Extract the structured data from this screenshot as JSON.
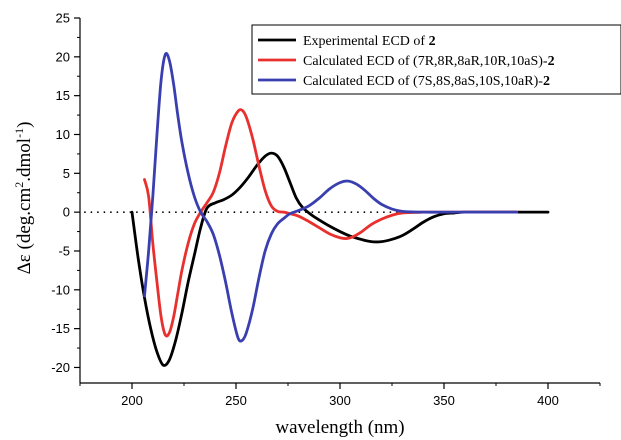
{
  "chart_data": {
    "type": "line",
    "xlabel": "wavelength (nm)",
    "ylabel_prefix": "Δε (deg.cm",
    "ylabel_sup1": "2",
    "ylabel_mid": ".dmol",
    "ylabel_sup2": "-1",
    "ylabel_suffix": ")",
    "xlim": [
      175,
      425
    ],
    "ylim": [
      -22,
      25
    ],
    "xticks": [
      200,
      250,
      300,
      350,
      400
    ],
    "yticks": [
      -20,
      -15,
      -10,
      -5,
      0,
      5,
      10,
      15,
      20,
      25
    ],
    "baseline": {
      "y": 0,
      "style": "dotted",
      "x_range": [
        177,
        388
      ]
    },
    "legend": {
      "placement": "top-right",
      "entries": [
        {
          "prefix": "Experimental ECD of ",
          "config": "",
          "suffix": "2",
          "color": "#000000"
        },
        {
          "prefix": "Calculated ECD of ",
          "config": "(7R,8R,8aR,10R,10aS)-",
          "suffix": "2",
          "color": "#e8312f"
        },
        {
          "prefix": "Calculated ECD of ",
          "config": "(7S,8S,8aS,10S,10aR)-",
          "suffix": "2",
          "color": "#3a3fb0"
        }
      ]
    },
    "series": [
      {
        "name": "Experimental ECD of 2",
        "color": "#000000",
        "points": [
          [
            200,
            0
          ],
          [
            203,
            -6
          ],
          [
            206,
            -11
          ],
          [
            209,
            -15
          ],
          [
            212,
            -18
          ],
          [
            215,
            -19.7
          ],
          [
            218,
            -19
          ],
          [
            221,
            -16.5
          ],
          [
            224,
            -13
          ],
          [
            227,
            -9
          ],
          [
            230,
            -5.5
          ],
          [
            233,
            -2
          ],
          [
            236,
            0.5
          ],
          [
            240,
            1.2
          ],
          [
            244,
            1.6
          ],
          [
            248,
            2.2
          ],
          [
            252,
            3.2
          ],
          [
            256,
            4.5
          ],
          [
            260,
            6
          ],
          [
            264,
            7.2
          ],
          [
            267,
            7.6
          ],
          [
            270,
            7.2
          ],
          [
            273,
            5.8
          ],
          [
            276,
            3.8
          ],
          [
            279,
            1.8
          ],
          [
            282,
            0.6
          ],
          [
            286,
            -0.3
          ],
          [
            290,
            -1
          ],
          [
            295,
            -1.8
          ],
          [
            300,
            -2.5
          ],
          [
            305,
            -3.1
          ],
          [
            310,
            -3.5
          ],
          [
            315,
            -3.8
          ],
          [
            320,
            -3.8
          ],
          [
            325,
            -3.5
          ],
          [
            330,
            -3
          ],
          [
            335,
            -2.2
          ],
          [
            340,
            -1.3
          ],
          [
            345,
            -0.6
          ],
          [
            350,
            -0.2
          ],
          [
            355,
            -0.1
          ],
          [
            360,
            0
          ],
          [
            370,
            0
          ],
          [
            380,
            0
          ],
          [
            390,
            0
          ],
          [
            400,
            0
          ]
        ]
      },
      {
        "name": "Calculated ECD of (7R,8R,8aR,10R,10aS)-2",
        "color": "#e8312f",
        "points": [
          [
            206,
            4.2
          ],
          [
            208,
            2
          ],
          [
            210,
            -4
          ],
          [
            212,
            -9
          ],
          [
            214,
            -13.5
          ],
          [
            216,
            -15.8
          ],
          [
            218,
            -15.5
          ],
          [
            220,
            -13.5
          ],
          [
            222,
            -10.5
          ],
          [
            224,
            -7.5
          ],
          [
            227,
            -4
          ],
          [
            230,
            -1.5
          ],
          [
            233,
            0
          ],
          [
            236,
            1.2
          ],
          [
            239,
            2.5
          ],
          [
            242,
            5
          ],
          [
            245,
            8.5
          ],
          [
            248,
            11.5
          ],
          [
            251,
            13
          ],
          [
            253,
            13.1
          ],
          [
            255,
            12.2
          ],
          [
            258,
            9.5
          ],
          [
            261,
            6
          ],
          [
            264,
            2.8
          ],
          [
            267,
            0.8
          ],
          [
            270,
            0.1
          ],
          [
            273,
            0
          ],
          [
            276,
            -0.2
          ],
          [
            280,
            -0.5
          ],
          [
            285,
            -1.2
          ],
          [
            290,
            -2
          ],
          [
            295,
            -2.8
          ],
          [
            300,
            -3.3
          ],
          [
            303,
            -3.4
          ],
          [
            306,
            -3.2
          ],
          [
            310,
            -2.6
          ],
          [
            315,
            -1.6
          ],
          [
            320,
            -0.9
          ],
          [
            325,
            -0.4
          ],
          [
            330,
            -0.1
          ],
          [
            340,
            0
          ],
          [
            350,
            0
          ],
          [
            360,
            0
          ],
          [
            370,
            0
          ],
          [
            380,
            0
          ],
          [
            385,
            0
          ]
        ]
      },
      {
        "name": "Calculated ECD of (7S,8S,8aS,10S,10aR)-2",
        "color": "#3a3fb0",
        "points": [
          [
            206,
            -10.8
          ],
          [
            208,
            -5
          ],
          [
            210,
            2
          ],
          [
            212,
            10
          ],
          [
            214,
            17
          ],
          [
            216,
            20.3
          ],
          [
            218,
            19.5
          ],
          [
            220,
            16.5
          ],
          [
            222,
            12.5
          ],
          [
            224,
            9
          ],
          [
            227,
            5
          ],
          [
            230,
            2
          ],
          [
            233,
            0
          ],
          [
            236,
            -1.2
          ],
          [
            239,
            -2.8
          ],
          [
            242,
            -5.5
          ],
          [
            245,
            -9
          ],
          [
            248,
            -13
          ],
          [
            251,
            -16.2
          ],
          [
            253,
            -16.5
          ],
          [
            255,
            -15.5
          ],
          [
            258,
            -12.5
          ],
          [
            261,
            -8.5
          ],
          [
            264,
            -5
          ],
          [
            267,
            -2.8
          ],
          [
            270,
            -1.5
          ],
          [
            273,
            -0.8
          ],
          [
            276,
            -0.2
          ],
          [
            280,
            0.2
          ],
          [
            285,
            0.8
          ],
          [
            290,
            1.8
          ],
          [
            295,
            3
          ],
          [
            300,
            3.8
          ],
          [
            304,
            4
          ],
          [
            308,
            3.6
          ],
          [
            312,
            2.8
          ],
          [
            316,
            1.8
          ],
          [
            320,
            1
          ],
          [
            325,
            0.4
          ],
          [
            330,
            0.1
          ],
          [
            340,
            0
          ],
          [
            350,
            0
          ],
          [
            360,
            0
          ],
          [
            370,
            0
          ],
          [
            380,
            0
          ],
          [
            385,
            0
          ]
        ]
      }
    ]
  }
}
